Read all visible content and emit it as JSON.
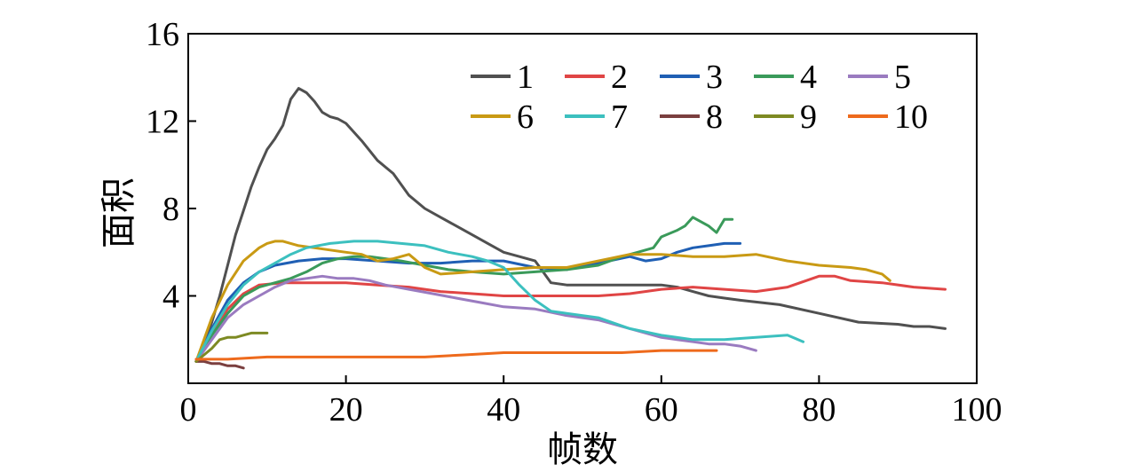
{
  "chart_data": {
    "type": "line",
    "title": "",
    "xlabel": "帧数",
    "ylabel": "面积",
    "xlim": [
      0,
      100
    ],
    "ylim": [
      0,
      16
    ],
    "xticks": [
      0,
      20,
      40,
      60,
      80,
      100
    ],
    "yticks": [
      4,
      8,
      12,
      16
    ],
    "xtick_labels": [
      "0",
      "20",
      "40",
      "60",
      "80",
      "100"
    ],
    "ytick_labels": [
      "4",
      "8",
      "12",
      "16"
    ],
    "grid": false,
    "legend": {
      "placement": "top-right",
      "columns": 5
    },
    "series": [
      {
        "name": "1",
        "color": "#505050",
        "x": [
          1,
          2,
          3,
          4,
          5,
          6,
          7,
          8,
          9,
          10,
          11,
          12,
          13,
          14,
          15,
          16,
          17,
          18,
          19,
          20,
          22,
          24,
          26,
          28,
          30,
          32,
          34,
          36,
          38,
          40,
          42,
          44,
          45,
          46,
          48,
          50,
          55,
          60,
          62,
          64,
          66,
          68,
          70,
          75,
          80,
          85,
          90,
          92,
          94,
          96
        ],
        "y": [
          1.0,
          1.8,
          2.8,
          4.0,
          5.4,
          6.8,
          7.9,
          9.0,
          9.9,
          10.7,
          11.2,
          11.8,
          13.0,
          13.5,
          13.3,
          12.9,
          12.4,
          12.2,
          12.1,
          11.9,
          11.1,
          10.2,
          9.6,
          8.6,
          8.0,
          7.6,
          7.2,
          6.8,
          6.4,
          6.0,
          5.8,
          5.6,
          5.1,
          4.6,
          4.5,
          4.5,
          4.5,
          4.5,
          4.4,
          4.2,
          4.0,
          3.9,
          3.8,
          3.6,
          3.2,
          2.8,
          2.7,
          2.6,
          2.6,
          2.5
        ]
      },
      {
        "name": "2",
        "color": "#e04545",
        "x": [
          1,
          3,
          5,
          7,
          9,
          12,
          15,
          18,
          20,
          24,
          28,
          32,
          36,
          40,
          44,
          48,
          52,
          56,
          60,
          64,
          68,
          72,
          76,
          80,
          82,
          84,
          88,
          92,
          96
        ],
        "y": [
          1.0,
          2.3,
          3.4,
          4.1,
          4.5,
          4.6,
          4.6,
          4.6,
          4.6,
          4.5,
          4.4,
          4.2,
          4.1,
          4.0,
          4.0,
          4.0,
          4.0,
          4.1,
          4.3,
          4.4,
          4.3,
          4.2,
          4.4,
          4.9,
          4.9,
          4.7,
          4.6,
          4.4,
          4.3
        ]
      },
      {
        "name": "3",
        "color": "#1f5fb4",
        "x": [
          1,
          3,
          5,
          7,
          9,
          11,
          14,
          17,
          20,
          24,
          28,
          32,
          36,
          40,
          44,
          48,
          52,
          56,
          58,
          60,
          62,
          64,
          66,
          68,
          70
        ],
        "y": [
          1.0,
          2.5,
          3.8,
          4.6,
          5.1,
          5.4,
          5.6,
          5.7,
          5.7,
          5.6,
          5.5,
          5.5,
          5.6,
          5.6,
          5.3,
          5.2,
          5.5,
          5.8,
          5.6,
          5.7,
          6.0,
          6.2,
          6.3,
          6.4,
          6.4
        ]
      },
      {
        "name": "4",
        "color": "#3a9a5a",
        "x": [
          1,
          3,
          5,
          7,
          9,
          11,
          13,
          15,
          17,
          19,
          21,
          23,
          25,
          27,
          30,
          33,
          36,
          40,
          44,
          48,
          52,
          55,
          57,
          59,
          60,
          62,
          63,
          64,
          65,
          66,
          67,
          68,
          69
        ],
        "y": [
          1.0,
          2.2,
          3.2,
          4.0,
          4.4,
          4.6,
          4.8,
          5.1,
          5.5,
          5.7,
          5.8,
          5.8,
          5.7,
          5.6,
          5.4,
          5.2,
          5.1,
          5.0,
          5.1,
          5.2,
          5.4,
          5.8,
          6.0,
          6.2,
          6.7,
          7.0,
          7.2,
          7.6,
          7.4,
          7.2,
          6.9,
          7.5,
          7.5
        ]
      },
      {
        "name": "5",
        "color": "#9a7bc0",
        "x": [
          1,
          3,
          5,
          7,
          9,
          11,
          13,
          15,
          17,
          19,
          21,
          23,
          25,
          28,
          31,
          34,
          37,
          40,
          44,
          48,
          52,
          56,
          60,
          64,
          66,
          68,
          70,
          72
        ],
        "y": [
          1.0,
          2.0,
          3.0,
          3.6,
          4.0,
          4.4,
          4.7,
          4.8,
          4.9,
          4.8,
          4.8,
          4.7,
          4.5,
          4.3,
          4.1,
          3.9,
          3.7,
          3.5,
          3.4,
          3.1,
          2.9,
          2.5,
          2.1,
          1.9,
          1.8,
          1.8,
          1.7,
          1.5
        ]
      },
      {
        "name": "6",
        "color": "#c99a14",
        "x": [
          1,
          3,
          5,
          7,
          9,
          10,
          11,
          12,
          14,
          16,
          18,
          20,
          22,
          24,
          26,
          28,
          30,
          32,
          36,
          40,
          44,
          48,
          52,
          56,
          60,
          64,
          68,
          72,
          76,
          80,
          84,
          86,
          88,
          89
        ],
        "y": [
          1.0,
          3.0,
          4.5,
          5.6,
          6.2,
          6.4,
          6.5,
          6.5,
          6.3,
          6.2,
          6.1,
          6.0,
          5.9,
          5.6,
          5.7,
          5.9,
          5.3,
          5.0,
          5.1,
          5.2,
          5.3,
          5.3,
          5.6,
          5.9,
          5.9,
          5.8,
          5.8,
          5.9,
          5.6,
          5.4,
          5.3,
          5.2,
          5.0,
          4.7
        ]
      },
      {
        "name": "7",
        "color": "#3cc0bf",
        "x": [
          1,
          3,
          5,
          7,
          9,
          11,
          13,
          15,
          18,
          21,
          24,
          27,
          30,
          33,
          36,
          38,
          40,
          42,
          44,
          46,
          48,
          52,
          56,
          60,
          64,
          68,
          72,
          76,
          78
        ],
        "y": [
          1.0,
          2.4,
          3.6,
          4.5,
          5.1,
          5.5,
          5.9,
          6.2,
          6.4,
          6.5,
          6.5,
          6.4,
          6.3,
          6.0,
          5.8,
          5.6,
          5.3,
          4.5,
          3.8,
          3.3,
          3.2,
          3.0,
          2.5,
          2.2,
          2.0,
          2.0,
          2.1,
          2.2,
          1.9
        ]
      },
      {
        "name": "8",
        "color": "#7a3f3f",
        "x": [
          1,
          2,
          3,
          4,
          5,
          6,
          7
        ],
        "y": [
          1.0,
          1.0,
          0.9,
          0.9,
          0.8,
          0.8,
          0.7
        ]
      },
      {
        "name": "9",
        "color": "#7d8a23",
        "x": [
          1,
          2,
          3,
          4,
          5,
          6,
          7,
          8,
          9,
          10
        ],
        "y": [
          1.0,
          1.3,
          1.6,
          2.0,
          2.1,
          2.1,
          2.2,
          2.3,
          2.3,
          2.3
        ]
      },
      {
        "name": "10",
        "color": "#ee6a1c",
        "x": [
          1,
          5,
          10,
          15,
          20,
          25,
          30,
          35,
          40,
          45,
          50,
          55,
          60,
          65,
          67
        ],
        "y": [
          1.1,
          1.1,
          1.2,
          1.2,
          1.2,
          1.2,
          1.2,
          1.3,
          1.4,
          1.4,
          1.4,
          1.4,
          1.5,
          1.5,
          1.5
        ]
      }
    ]
  }
}
